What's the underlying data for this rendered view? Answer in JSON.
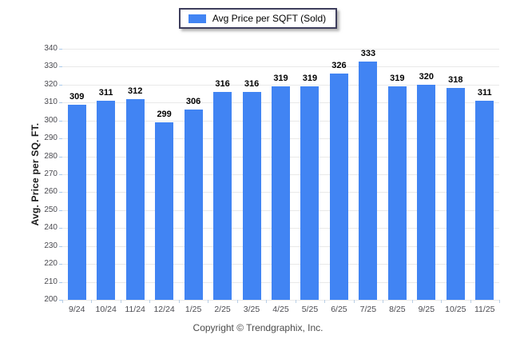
{
  "legend": {
    "label": "Avg Price per SQFT (Sold)"
  },
  "footer": {
    "copyright": "Copyright © Trendgraphix, Inc."
  },
  "colors": {
    "bar": "#4184F3",
    "gridline": "#e9e9e9",
    "y_tick": "#a9c9ea",
    "x_tick": "#b9cfe6",
    "axis_text": "#4a4a50",
    "value_label_text": "#000000",
    "legend_border": "#3d3d5c"
  },
  "chart_data": {
    "type": "bar",
    "title": "Avg Price per SQFT (Sold)",
    "categories": [
      "9/24",
      "10/24",
      "11/24",
      "12/24",
      "1/25",
      "2/25",
      "3/25",
      "4/25",
      "5/25",
      "6/25",
      "7/25",
      "8/25",
      "9/25",
      "10/25",
      "11/25"
    ],
    "values": [
      309,
      311,
      312,
      299,
      306,
      316,
      316,
      319,
      319,
      326,
      333,
      319,
      320,
      318,
      311
    ],
    "xlabel": "",
    "ylabel": "Avg. Price per SQ. FT.",
    "ylim": [
      200,
      340
    ],
    "ytick_step": 10,
    "grid": true,
    "legend_position": "top-center",
    "value_labels": true
  }
}
